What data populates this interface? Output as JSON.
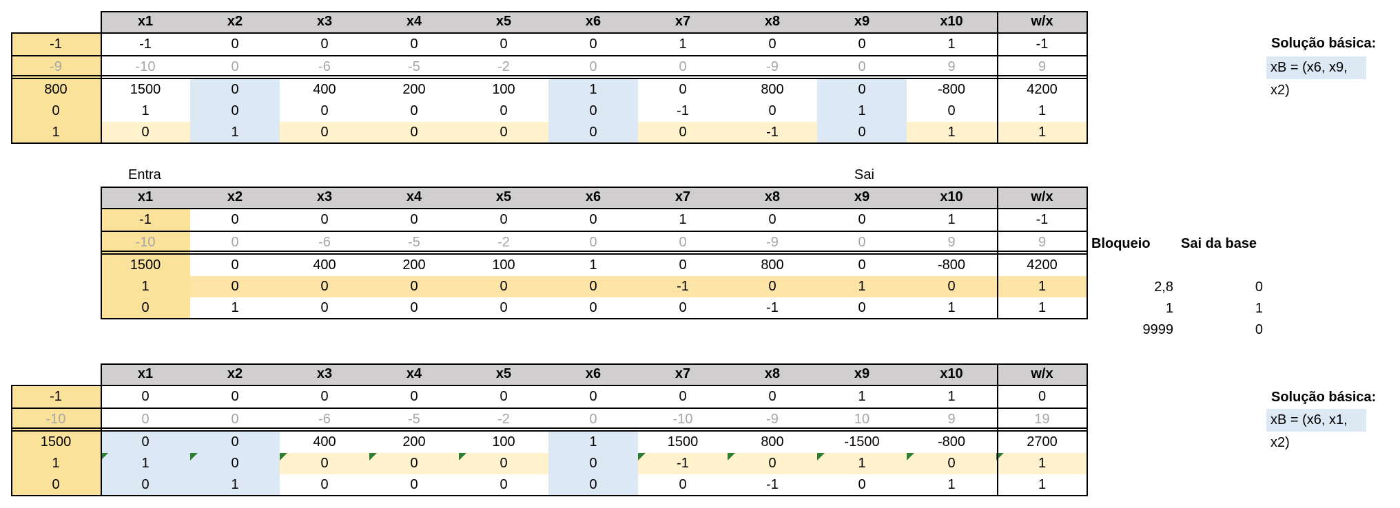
{
  "headers": [
    "x1",
    "x2",
    "x3",
    "x4",
    "x5",
    "x6",
    "x7",
    "x8",
    "x9",
    "x10",
    "w/x"
  ],
  "table1": {
    "left": [
      "-1",
      "-9",
      "800",
      "0",
      "1"
    ],
    "rows": [
      [
        "-1",
        "0",
        "0",
        "0",
        "0",
        "0",
        "1",
        "0",
        "0",
        "1",
        "-1"
      ],
      [
        "-10",
        "0",
        "-6",
        "-5",
        "-2",
        "0",
        "0",
        "-9",
        "0",
        "9",
        "9"
      ],
      [
        "1500",
        "0",
        "400",
        "200",
        "100",
        "1",
        "0",
        "800",
        "0",
        "-800",
        "4200"
      ],
      [
        "1",
        "0",
        "0",
        "0",
        "0",
        "0",
        "-1",
        "0",
        "1",
        "0",
        "1"
      ],
      [
        "0",
        "1",
        "0",
        "0",
        "0",
        "0",
        "0",
        "-1",
        "0",
        "1",
        "1"
      ]
    ]
  },
  "side1": {
    "title": "Solução básica:",
    "value": "xB = (x6, x9, x2)"
  },
  "entra_label": "Entra",
  "sai_label": "Sai",
  "table2": {
    "rows": [
      [
        "-1",
        "0",
        "0",
        "0",
        "0",
        "0",
        "1",
        "0",
        "0",
        "1",
        "-1"
      ],
      [
        "-10",
        "0",
        "-6",
        "-5",
        "-2",
        "0",
        "0",
        "-9",
        "0",
        "9",
        "9"
      ],
      [
        "1500",
        "0",
        "400",
        "200",
        "100",
        "1",
        "0",
        "800",
        "0",
        "-800",
        "4200"
      ],
      [
        "1",
        "0",
        "0",
        "0",
        "0",
        "0",
        "-1",
        "0",
        "1",
        "0",
        "1"
      ],
      [
        "0",
        "1",
        "0",
        "0",
        "0",
        "0",
        "0",
        "-1",
        "0",
        "1",
        "1"
      ]
    ]
  },
  "bloqueio": {
    "header_bloqueio": "Bloqueio",
    "header_sai": "Sai da base",
    "values": [
      "2,8",
      "1",
      "9999"
    ],
    "sai": [
      "0",
      "1",
      "0"
    ]
  },
  "table3": {
    "left": [
      "-1",
      "-10",
      "1500",
      "1",
      "0"
    ],
    "rows": [
      [
        "0",
        "0",
        "0",
        "0",
        "0",
        "0",
        "0",
        "0",
        "1",
        "1",
        "0"
      ],
      [
        "0",
        "0",
        "-6",
        "-5",
        "-2",
        "0",
        "-10",
        "-9",
        "10",
        "9",
        "19"
      ],
      [
        "0",
        "0",
        "400",
        "200",
        "100",
        "1",
        "1500",
        "800",
        "-1500",
        "-800",
        "2700"
      ],
      [
        "1",
        "0",
        "0",
        "0",
        "0",
        "0",
        "-1",
        "0",
        "1",
        "0",
        "1"
      ],
      [
        "0",
        "1",
        "0",
        "0",
        "0",
        "0",
        "0",
        "-1",
        "0",
        "1",
        "1"
      ]
    ]
  },
  "side3": {
    "title": "Solução básica:",
    "value": "xB = (x6, x1, x2)"
  },
  "colors": {
    "header": "#d0cece",
    "blue": "#dde8f5",
    "yellow": "#fff2cc",
    "orange": "#fce4a6",
    "gold": "#fbe29b",
    "marker": "#2e7d32"
  }
}
